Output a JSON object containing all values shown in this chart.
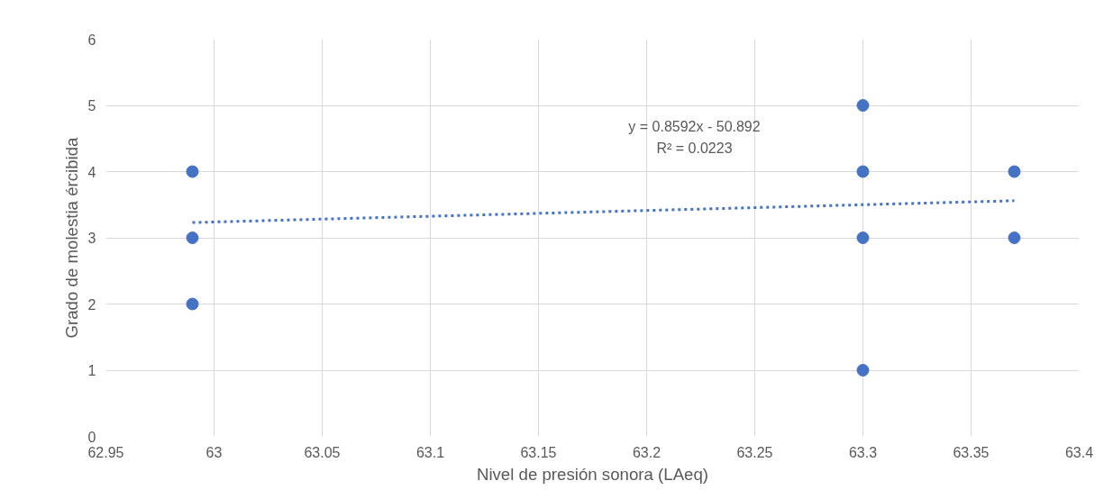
{
  "chart_data": {
    "type": "scatter",
    "xlabel": "Nivel de presión sonora (LAeq)",
    "ylabel": "Grado de molestia ércibida",
    "xlim": [
      62.95,
      63.4
    ],
    "xticks": [
      62.95,
      63,
      63.05,
      63.1,
      63.15,
      63.2,
      63.25,
      63.3,
      63.35,
      63.4
    ],
    "ylim": [
      0,
      6
    ],
    "yticks": [
      0,
      1,
      2,
      3,
      4,
      5,
      6
    ],
    "grid": true,
    "annotations": [
      "y = 0.8592x - 50.892",
      "R² = 0.0223"
    ],
    "series": [
      {
        "color": "#4472c4",
        "marker": "circle",
        "x": [
          62.99,
          62.99,
          62.99,
          63.3,
          63.3,
          63.3,
          63.3,
          63.37,
          63.37
        ],
        "values": [
          4,
          3,
          2,
          5,
          4,
          3,
          1,
          4,
          3
        ]
      },
      {
        "type": "line",
        "color": "#4472c4",
        "line_style": "dotted",
        "marker": "none",
        "x": [
          62.99,
          63.37
        ],
        "values": [
          3.23,
          3.56
        ]
      }
    ]
  }
}
